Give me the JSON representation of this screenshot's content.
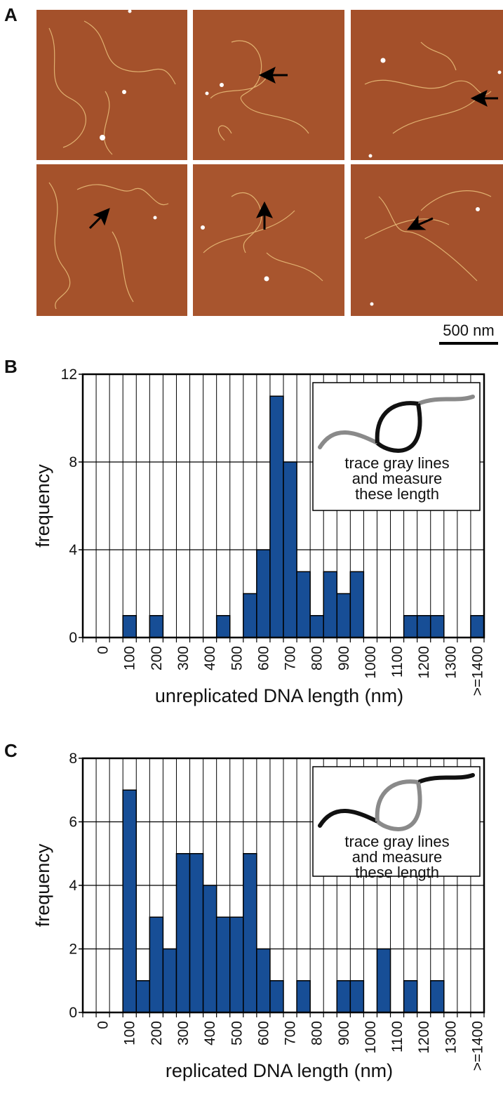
{
  "panel_a": {
    "label": "A",
    "scale_bar": "500 nm"
  },
  "chart_data": [
    {
      "type": "bar",
      "panel_label": "B",
      "xlabel": "unreplicated DNA length (nm)",
      "ylabel": "frequency",
      "categories": [
        null,
        "0",
        null,
        "100",
        null,
        "200",
        null,
        "300",
        null,
        "400",
        null,
        "500",
        null,
        "600",
        null,
        "700",
        null,
        "800",
        null,
        "900",
        null,
        "1000",
        null,
        "1100",
        null,
        "1200",
        null,
        "1300",
        null,
        ">=1400"
      ],
      "values": [
        0,
        0,
        0,
        1,
        0,
        1,
        0,
        0,
        0,
        0,
        1,
        0,
        2,
        4,
        11,
        8,
        3,
        1,
        3,
        2,
        3,
        0,
        0,
        0,
        1,
        1,
        1,
        0,
        0,
        1
      ],
      "color": "#174e96",
      "ylim": [
        0,
        12
      ],
      "yticks": [
        0,
        4,
        8,
        12
      ],
      "grid": true,
      "annotation": [
        "trace gray lines",
        "and measure",
        "these length"
      ]
    },
    {
      "type": "bar",
      "panel_label": "C",
      "xlabel": "replicated DNA length (nm)",
      "ylabel": "frequency",
      "categories": [
        null,
        "0",
        null,
        "100",
        null,
        "200",
        null,
        "300",
        null,
        "400",
        null,
        "500",
        null,
        "600",
        null,
        "700",
        null,
        "800",
        null,
        "900",
        null,
        "1000",
        null,
        "1100",
        null,
        "1200",
        null,
        "1300",
        null,
        ">=1400"
      ],
      "values": [
        0,
        0,
        0,
        7,
        1,
        3,
        2,
        5,
        5,
        4,
        3,
        3,
        5,
        2,
        1,
        0,
        1,
        0,
        0,
        1,
        1,
        0,
        2,
        0,
        1,
        0,
        1,
        0,
        0,
        0
      ],
      "color": "#174e96",
      "ylim": [
        0,
        8
      ],
      "yticks": [
        0,
        2,
        4,
        6,
        8
      ],
      "grid": true,
      "annotation": [
        "trace gray lines",
        "and measure",
        "these length"
      ]
    }
  ]
}
